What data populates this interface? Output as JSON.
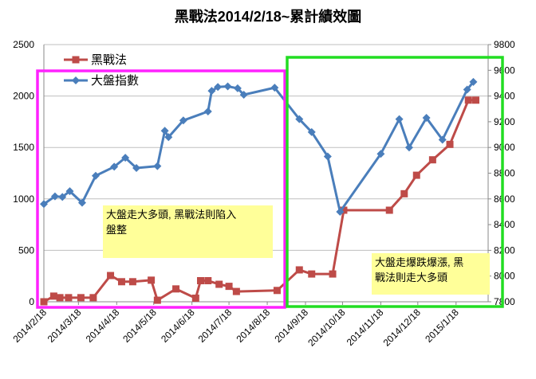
{
  "chart_data": {
    "type": "line",
    "title": "黑戰法2014/2/18~累計績效圖",
    "y_left": {
      "min": 0,
      "max": 2500,
      "ticks": [
        0,
        500,
        1000,
        1500,
        2000,
        2500
      ]
    },
    "y_right": {
      "min": 7800,
      "max": 9800,
      "ticks": [
        7800,
        8000,
        8200,
        8400,
        8600,
        8800,
        9000,
        9200,
        9400,
        9600,
        9800
      ]
    },
    "x_labels": [
      {
        "t": 0,
        "label": "2014/2/18"
      },
      {
        "t": 28,
        "label": "2014/3/18"
      },
      {
        "t": 59,
        "label": "2014/4/18"
      },
      {
        "t": 89,
        "label": "2014/5/18"
      },
      {
        "t": 120,
        "label": "2014/6/18"
      },
      {
        "t": 150,
        "label": "2014/7/18"
      },
      {
        "t": 181,
        "label": "2014/8/18"
      },
      {
        "t": 212,
        "label": "2014/9/18"
      },
      {
        "t": 242,
        "label": "2014/10/18"
      },
      {
        "t": 273,
        "label": "2014/11/18"
      },
      {
        "t": 303,
        "label": "2014/12/18"
      },
      {
        "t": 334,
        "label": "2015/1/18"
      }
    ],
    "x_range": [
      0,
      360
    ],
    "series": [
      {
        "name": "黑戰法",
        "axis": "left",
        "color": "#be4b48",
        "marker": "square",
        "points": [
          [
            0,
            0
          ],
          [
            8,
            55
          ],
          [
            13,
            40
          ],
          [
            20,
            40
          ],
          [
            30,
            40
          ],
          [
            40,
            40
          ],
          [
            54,
            255
          ],
          [
            63,
            195
          ],
          [
            72,
            195
          ],
          [
            87,
            210
          ],
          [
            92,
            15
          ],
          [
            107,
            125
          ],
          [
            123,
            35
          ],
          [
            127,
            205
          ],
          [
            133,
            205
          ],
          [
            142,
            170
          ],
          [
            150,
            150
          ],
          [
            156,
            100
          ],
          [
            189,
            110
          ],
          [
            207,
            310
          ],
          [
            217,
            270
          ],
          [
            234,
            270
          ],
          [
            243,
            890
          ],
          [
            280,
            890
          ],
          [
            292,
            1050
          ],
          [
            302,
            1230
          ],
          [
            315,
            1380
          ],
          [
            329,
            1530
          ],
          [
            344,
            1960
          ],
          [
            350,
            1960
          ]
        ]
      },
      {
        "name": "大盤指數",
        "axis": "right",
        "color": "#4a7ebb",
        "marker": "diamond",
        "points": [
          [
            0,
            8560
          ],
          [
            9,
            8620
          ],
          [
            15,
            8615
          ],
          [
            21,
            8660
          ],
          [
            31,
            8570
          ],
          [
            42,
            8780
          ],
          [
            57,
            8850
          ],
          [
            66,
            8920
          ],
          [
            75,
            8840
          ],
          [
            92,
            8855
          ],
          [
            98,
            9130
          ],
          [
            101,
            9080
          ],
          [
            113,
            9210
          ],
          [
            133,
            9280
          ],
          [
            136,
            9440
          ],
          [
            141,
            9470
          ],
          [
            149,
            9475
          ],
          [
            157,
            9460
          ],
          [
            162,
            9410
          ],
          [
            187,
            9465
          ],
          [
            207,
            9220
          ],
          [
            217,
            9120
          ],
          [
            230,
            8930
          ],
          [
            240,
            8500
          ],
          [
            273,
            8950
          ],
          [
            288,
            9220
          ],
          [
            296,
            9000
          ],
          [
            310,
            9230
          ],
          [
            323,
            9060
          ],
          [
            343,
            9450
          ],
          [
            348,
            9510
          ]
        ]
      }
    ],
    "annotations": [
      {
        "text_lines": [
          "大盤走大多頭, 黑戰法則陷入",
          "盤整"
        ]
      },
      {
        "text_lines": [
          "大盤走爆跌爆漲, 黑",
          "戰法則走大多頭"
        ]
      }
    ],
    "highlight_boxes": [
      {
        "color": "#ff22ff"
      },
      {
        "color": "#22dd22"
      }
    ],
    "legend_placement": "top-left"
  }
}
